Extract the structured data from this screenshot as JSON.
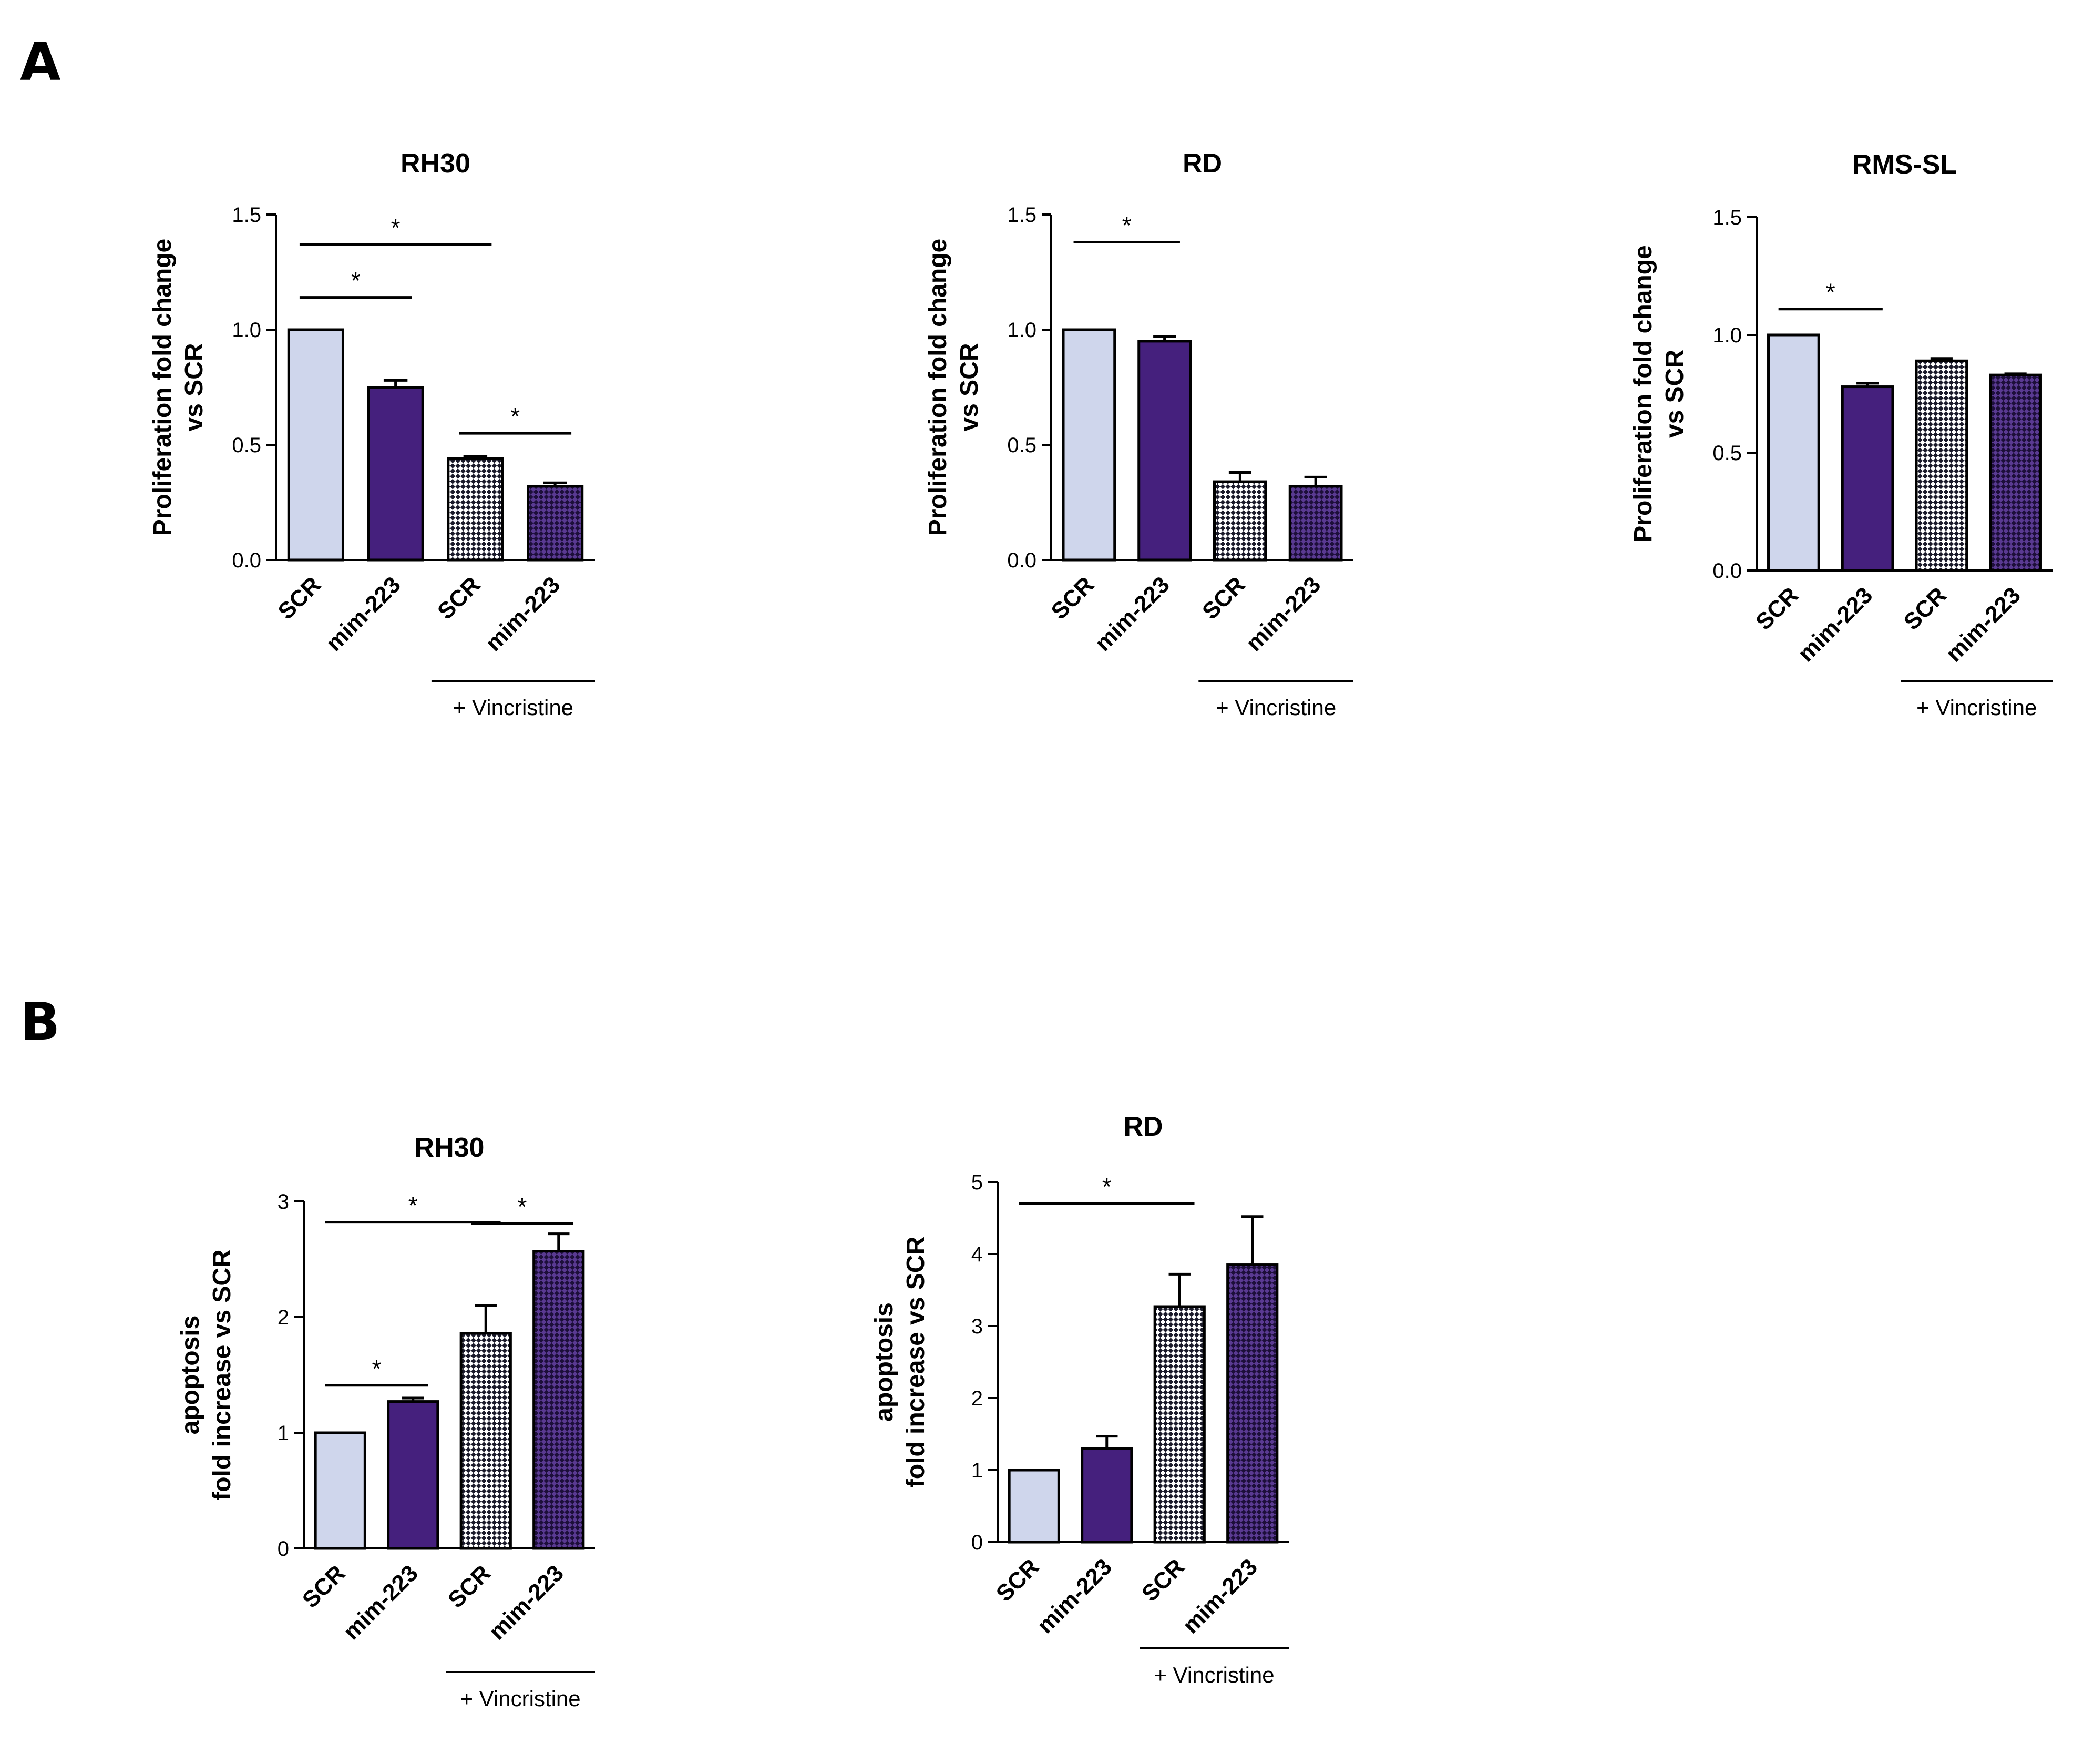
{
  "colors": {
    "scr": "#cfd6ec",
    "mim": "#45207d",
    "outline": "#000000"
  },
  "panels": {
    "A": "A",
    "B": "B"
  },
  "chart_data": [
    {
      "type": "bar",
      "panel": "A",
      "title": "RH30",
      "ylabel": [
        "Proliferation fold change",
        "vs SCR"
      ],
      "categories": [
        "SCR",
        "mim-223",
        "SCR",
        "mim-223"
      ],
      "fills": [
        "scr",
        "mim",
        "scr-check",
        "mim-check"
      ],
      "values": [
        1.0,
        0.75,
        0.44,
        0.32
      ],
      "errors": [
        0,
        0.03,
        0.01,
        0.015
      ],
      "ylim": [
        0,
        1.5
      ],
      "yticks": [
        0,
        0.5,
        1.0,
        1.5
      ],
      "yticklabels": [
        "0.0",
        "0.5",
        "1.0",
        "1.5"
      ],
      "group_label": "+ Vincristine",
      "group_bars": [
        2,
        3
      ],
      "significance": [
        {
          "from": 0,
          "to": 2,
          "y": 1.37,
          "label": "*"
        },
        {
          "from": 0,
          "to": 1,
          "y": 1.14,
          "label": "*"
        },
        {
          "from": 2,
          "to": 3,
          "y": 0.55,
          "label": "*"
        }
      ]
    },
    {
      "type": "bar",
      "panel": "A",
      "title": "RD",
      "ylabel": [
        "Proliferation fold change",
        "vs SCR"
      ],
      "categories": [
        "SCR",
        "mim-223",
        "SCR",
        "mim-223"
      ],
      "fills": [
        "scr",
        "mim",
        "scr-check",
        "mim-check"
      ],
      "values": [
        1.0,
        0.95,
        0.34,
        0.32
      ],
      "errors": [
        0,
        0.02,
        0.04,
        0.04
      ],
      "ylim": [
        0,
        1.5
      ],
      "yticks": [
        0,
        0.5,
        1.0,
        1.5
      ],
      "yticklabels": [
        "0.0",
        "0.5",
        "1.0",
        "1.5"
      ],
      "group_label": "+ Vincristine",
      "group_bars": [
        2,
        3
      ],
      "significance": [
        {
          "from": 0,
          "to": 1,
          "y": 1.38,
          "label": "*"
        }
      ]
    },
    {
      "type": "bar",
      "panel": "A",
      "title": "RMS-SL",
      "ylabel": [
        "Proliferation fold change",
        "vs SCR"
      ],
      "categories": [
        "SCR",
        "mim-223",
        "SCR",
        "mim-223"
      ],
      "fills": [
        "scr",
        "mim",
        "scr-check",
        "mim-check"
      ],
      "values": [
        1.0,
        0.78,
        0.89,
        0.83
      ],
      "errors": [
        0,
        0.015,
        0.01,
        0.005
      ],
      "ylim": [
        0,
        1.5
      ],
      "yticks": [
        0,
        0.5,
        1.0,
        1.5
      ],
      "yticklabels": [
        "0.0",
        "0.5",
        "1.0",
        "1.5"
      ],
      "group_label": "+ Vincristine",
      "group_bars": [
        2,
        3
      ],
      "significance": [
        {
          "from": 0,
          "to": 1,
          "y": 1.11,
          "label": "*"
        }
      ]
    },
    {
      "type": "bar",
      "panel": "B",
      "title": "RH30",
      "ylabel": [
        "apoptosis",
        "fold increase vs SCR"
      ],
      "categories": [
        "SCR",
        "mim-223",
        "SCR",
        "mim-223"
      ],
      "fills": [
        "scr",
        "mim",
        "scr-check",
        "mim-check"
      ],
      "values": [
        1.0,
        1.27,
        1.86,
        2.57
      ],
      "errors": [
        0,
        0.03,
        0.24,
        0.15
      ],
      "ylim": [
        0,
        3
      ],
      "yticks": [
        0,
        1,
        2,
        3
      ],
      "yticklabels": [
        "0",
        "1",
        "2",
        "3"
      ],
      "group_label": "+ Vincristine",
      "group_bars": [
        2,
        3
      ],
      "significance": [
        {
          "from": 0,
          "to": 2,
          "y": 2.82,
          "label": "*"
        },
        {
          "from": 2,
          "to": 3,
          "y": 2.81,
          "label": "*"
        },
        {
          "from": 0,
          "to": 1,
          "y": 1.41,
          "label": "*"
        }
      ]
    },
    {
      "type": "bar",
      "panel": "B",
      "title": "RD",
      "ylabel": [
        "apoptosis",
        "fold increase vs SCR"
      ],
      "categories": [
        "SCR",
        "mim-223",
        "SCR",
        "mim-223"
      ],
      "fills": [
        "scr",
        "mim",
        "scr-check",
        "mim-check"
      ],
      "values": [
        1.0,
        1.3,
        3.27,
        3.85
      ],
      "errors": [
        0,
        0.17,
        0.45,
        0.67
      ],
      "ylim": [
        0,
        5
      ],
      "yticks": [
        0,
        1,
        2,
        3,
        4,
        5
      ],
      "yticklabels": [
        "0",
        "1",
        "2",
        "3",
        "4",
        "5"
      ],
      "group_label": "+ Vincristine",
      "group_bars": [
        2,
        3
      ],
      "significance": [
        {
          "from": 0,
          "to": 2,
          "y": 4.7,
          "label": "*"
        }
      ]
    }
  ]
}
